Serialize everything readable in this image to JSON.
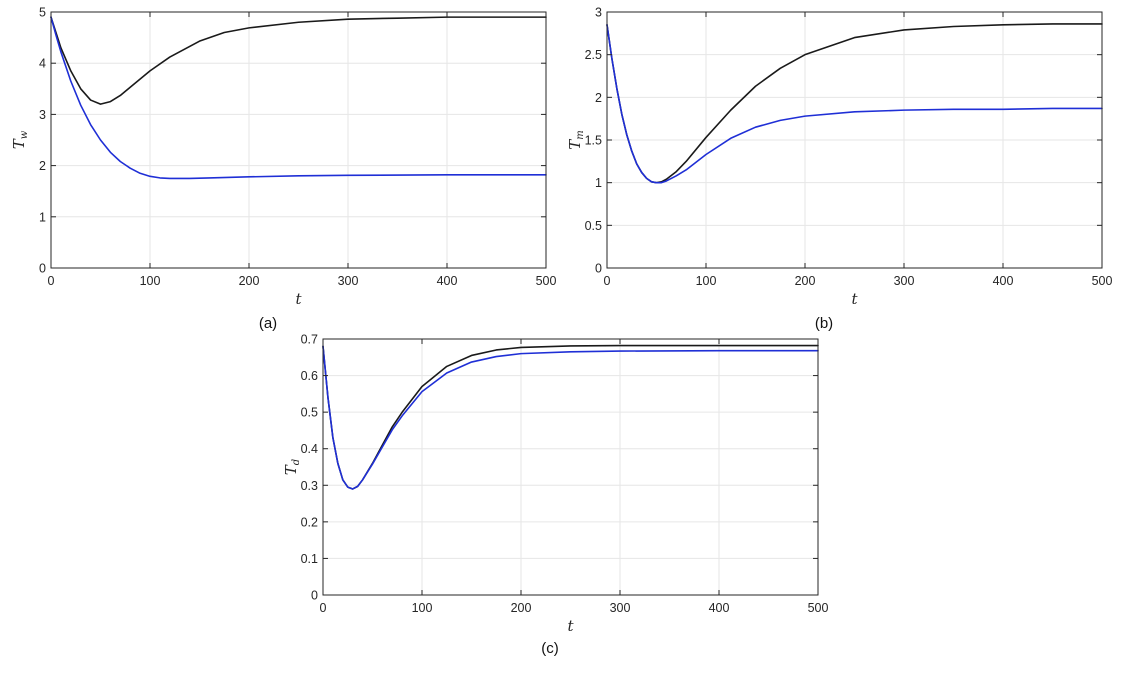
{
  "chart_data": [
    {
      "type": "line",
      "panel_label": "(a)",
      "xlabel": "t",
      "ylabel": {
        "base": "T",
        "sub": "w"
      },
      "xlim": [
        0,
        500
      ],
      "ylim": [
        0,
        5
      ],
      "xticks": [
        0,
        100,
        200,
        300,
        400,
        500
      ],
      "yticks": [
        0,
        1,
        2,
        3,
        4,
        5
      ],
      "grid": true,
      "series": [
        {
          "color": "#1a1a1a",
          "x": [
            0,
            5,
            10,
            20,
            30,
            40,
            50,
            60,
            70,
            80,
            100,
            120,
            150,
            175,
            200,
            250,
            300,
            350,
            400,
            450,
            500
          ],
          "y": [
            4.9,
            4.6,
            4.3,
            3.85,
            3.5,
            3.28,
            3.2,
            3.25,
            3.37,
            3.53,
            3.85,
            4.12,
            4.43,
            4.6,
            4.69,
            4.8,
            4.86,
            4.88,
            4.9,
            4.9,
            4.9
          ]
        },
        {
          "color": "#1f2fd6",
          "x": [
            0,
            5,
            10,
            20,
            30,
            40,
            50,
            60,
            70,
            80,
            90,
            100,
            110,
            120,
            140,
            160,
            200,
            250,
            300,
            400,
            500
          ],
          "y": [
            4.9,
            4.55,
            4.22,
            3.65,
            3.18,
            2.8,
            2.5,
            2.26,
            2.08,
            1.95,
            1.85,
            1.79,
            1.76,
            1.75,
            1.75,
            1.76,
            1.78,
            1.8,
            1.81,
            1.82,
            1.82
          ]
        }
      ]
    },
    {
      "type": "line",
      "panel_label": "(b)",
      "xlabel": "t",
      "ylabel": {
        "base": "T",
        "sub": "m"
      },
      "xlim": [
        0,
        500
      ],
      "ylim": [
        0,
        3
      ],
      "xticks": [
        0,
        100,
        200,
        300,
        400,
        500
      ],
      "yticks": [
        0,
        0.5,
        1,
        1.5,
        2,
        2.5,
        3
      ],
      "grid": true,
      "series": [
        {
          "color": "#1a1a1a",
          "x": [
            0,
            5,
            10,
            15,
            20,
            25,
            30,
            35,
            40,
            45,
            50,
            55,
            60,
            70,
            80,
            100,
            125,
            150,
            175,
            200,
            250,
            300,
            350,
            400,
            450,
            500
          ],
          "y": [
            2.85,
            2.45,
            2.1,
            1.8,
            1.56,
            1.37,
            1.22,
            1.12,
            1.05,
            1.01,
            1.0,
            1.01,
            1.04,
            1.13,
            1.25,
            1.53,
            1.85,
            2.13,
            2.34,
            2.5,
            2.7,
            2.79,
            2.83,
            2.85,
            2.86,
            2.86
          ]
        },
        {
          "color": "#1f2fd6",
          "x": [
            0,
            5,
            10,
            15,
            20,
            25,
            30,
            35,
            40,
            45,
            50,
            55,
            60,
            70,
            80,
            100,
            125,
            150,
            175,
            200,
            250,
            300,
            350,
            400,
            450,
            500
          ],
          "y": [
            2.85,
            2.45,
            2.1,
            1.8,
            1.56,
            1.37,
            1.22,
            1.12,
            1.05,
            1.01,
            1.0,
            1.0,
            1.02,
            1.08,
            1.15,
            1.33,
            1.52,
            1.65,
            1.73,
            1.78,
            1.83,
            1.85,
            1.86,
            1.86,
            1.87,
            1.87
          ]
        }
      ]
    },
    {
      "type": "line",
      "panel_label": "(c)",
      "xlabel": "t",
      "ylabel": {
        "base": "T",
        "sub": "d"
      },
      "xlim": [
        0,
        500
      ],
      "ylim": [
        0,
        0.7
      ],
      "xticks": [
        0,
        100,
        200,
        300,
        400,
        500
      ],
      "yticks": [
        0,
        0.1,
        0.2,
        0.3,
        0.4,
        0.5,
        0.6,
        0.7
      ],
      "grid": true,
      "series": [
        {
          "color": "#1a1a1a",
          "x": [
            0,
            5,
            10,
            15,
            20,
            25,
            30,
            35,
            40,
            50,
            60,
            70,
            80,
            100,
            125,
            150,
            175,
            200,
            250,
            300,
            400,
            500
          ],
          "y": [
            0.68,
            0.54,
            0.43,
            0.36,
            0.315,
            0.295,
            0.29,
            0.297,
            0.315,
            0.36,
            0.41,
            0.46,
            0.5,
            0.57,
            0.625,
            0.655,
            0.67,
            0.677,
            0.681,
            0.682,
            0.682,
            0.682
          ]
        },
        {
          "color": "#1f2fd6",
          "x": [
            0,
            5,
            10,
            15,
            20,
            25,
            30,
            35,
            40,
            50,
            60,
            70,
            80,
            100,
            125,
            150,
            175,
            200,
            250,
            300,
            400,
            500
          ],
          "y": [
            0.68,
            0.54,
            0.43,
            0.36,
            0.315,
            0.295,
            0.29,
            0.297,
            0.315,
            0.358,
            0.405,
            0.452,
            0.49,
            0.556,
            0.607,
            0.637,
            0.652,
            0.66,
            0.665,
            0.667,
            0.668,
            0.668
          ]
        }
      ]
    }
  ]
}
